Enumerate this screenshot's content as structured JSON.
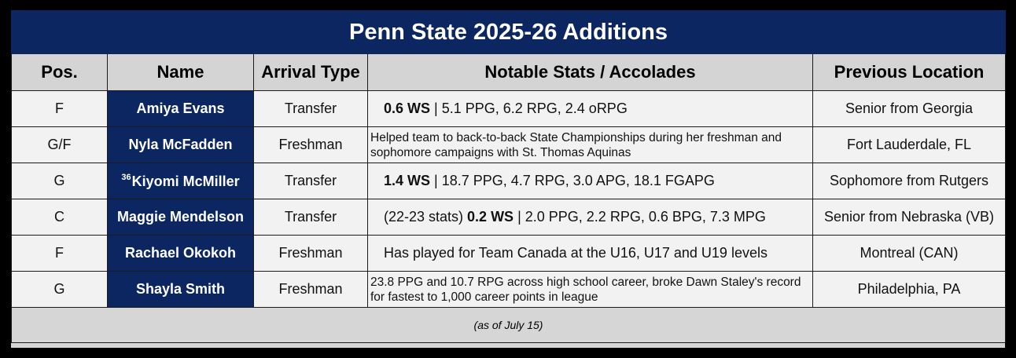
{
  "title": "Penn State 2025-26 Additions",
  "headers": {
    "pos": "Pos.",
    "name": "Name",
    "arrival": "Arrival Type",
    "stats": "Notable Stats / Accolades",
    "previous": "Previous Location"
  },
  "rows": [
    {
      "pos": "F",
      "name_sup": "",
      "name": "Amiya Evans",
      "arrival": "Transfer",
      "stats_pre": "",
      "stats_bold": "0.6 WS",
      "stats_post": " | 5.1 PPG, 6.2 RPG, 2.4 oRPG",
      "previous": "Senior from Georgia"
    },
    {
      "pos": "G/F",
      "name_sup": "",
      "name": "Nyla McFadden",
      "arrival": "Freshman",
      "stats_text": "Helped team to back-to-back State Championships during her freshman and sophomore campaigns with St. Thomas Aquinas",
      "previous": "Fort Lauderdale, FL"
    },
    {
      "pos": "G",
      "name_sup": "36",
      "name": "Kiyomi McMiller",
      "arrival": "Transfer",
      "stats_pre": "",
      "stats_bold": "1.4 WS",
      "stats_post": " | 18.7 PPG, 4.7 RPG, 3.0 APG, 18.1 FGAPG",
      "previous": "Sophomore from Rutgers"
    },
    {
      "pos": "C",
      "name_sup": "",
      "name": "Maggie Mendelson",
      "arrival": "Transfer",
      "stats_pre": "(22-23 stats) ",
      "stats_bold": "0.2 WS",
      "stats_post": " | 2.0 PPG, 2.2 RPG, 0.6 BPG, 7.3 MPG",
      "previous": "Senior from Nebraska (VB)"
    },
    {
      "pos": "F",
      "name_sup": "",
      "name": "Rachael Okokoh",
      "arrival": "Freshman",
      "stats_plain": "Has played for Team Canada at the U16, U17 and U19 levels",
      "previous": "Montreal (CAN)"
    },
    {
      "pos": "G",
      "name_sup": "",
      "name": "Shayla Smith",
      "arrival": "Freshman",
      "stats_text": "23.8 PPG and 10.7 RPG across high school career, broke Dawn Staley's record for fastest to 1,000 career points in league",
      "previous": "Philadelphia, PA"
    }
  ],
  "footer": "(as of July 15)",
  "colors": {
    "navy": "#0b2660",
    "header_gray": "#d4d4d4",
    "row_bg": "#f2f2f2"
  }
}
